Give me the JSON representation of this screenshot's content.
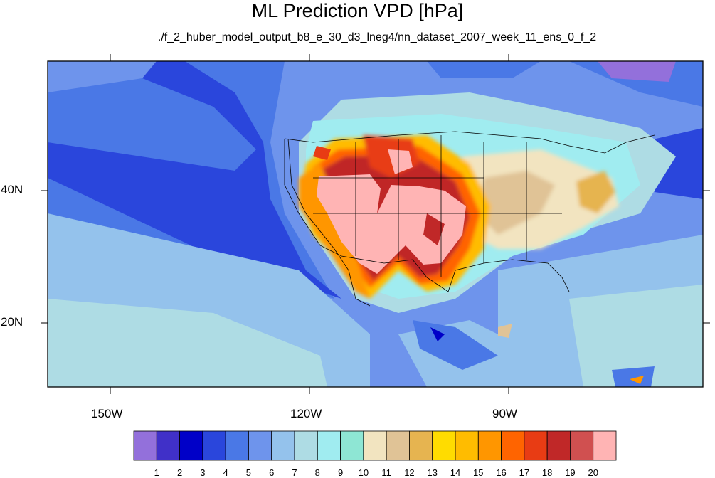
{
  "title": "ML Prediction VPD [hPa]",
  "subtitle": "./f_2_huber_model_output_b8_e_30_d3_lneg4/nn_dataset_2007_week_11_ens_0_f_2",
  "axes": {
    "lat_labels": [
      "40N",
      "20N"
    ],
    "lon_labels": [
      "150W",
      "120W",
      "90W"
    ]
  },
  "colorbar": {
    "colors": [
      "#9370db",
      "#4030c8",
      "#0000c8",
      "#2a46dc",
      "#4a78e6",
      "#6e94ec",
      "#94c2ec",
      "#aedce4",
      "#a0ecf0",
      "#8ee6d4",
      "#f2e4c0",
      "#e0c396",
      "#e6b450",
      "#ffdc00",
      "#ffbc00",
      "#ff9600",
      "#ff6400",
      "#e83c14",
      "#c02828",
      "#d05050",
      "#ffb4b4"
    ],
    "labels": [
      "1",
      "2",
      "3",
      "4",
      "5",
      "6",
      "7",
      "8",
      "9",
      "10",
      "11",
      "12",
      "13",
      "14",
      "15",
      "16",
      "17",
      "18",
      "19",
      "20"
    ]
  }
}
